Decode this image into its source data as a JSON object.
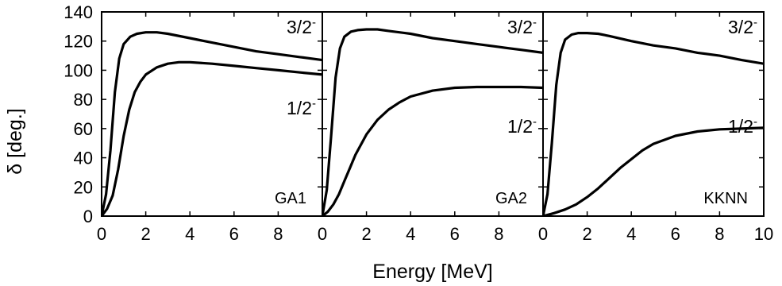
{
  "chart_data": {
    "type": "line",
    "xlabel": "Energy [MeV]",
    "ylabel": "δ [deg.]",
    "xlim": [
      0,
      10
    ],
    "ylim": [
      0,
      140
    ],
    "x_ticks": [
      0,
      2,
      4,
      6,
      8,
      10
    ],
    "y_ticks": [
      0,
      20,
      40,
      60,
      80,
      100,
      120,
      140
    ],
    "grid": false,
    "panels": [
      {
        "tag": "GA1",
        "series": [
          {
            "name": "3/2-",
            "x": [
              0,
              0.2,
              0.4,
              0.6,
              0.8,
              1.0,
              1.3,
              1.6,
              2.0,
              2.5,
              3,
              4,
              5,
              6,
              7,
              8,
              9,
              10
            ],
            "y": [
              0,
              15,
              45,
              85,
              108,
              118,
              123,
              125,
              126,
              126,
              125,
              122,
              119,
              116,
              113,
              111,
              109,
              107
            ]
          },
          {
            "name": "1/2-",
            "x": [
              0,
              0.25,
              0.5,
              0.75,
              1.0,
              1.25,
              1.5,
              1.75,
              2.0,
              2.5,
              3,
              3.5,
              4,
              5,
              6,
              7,
              8,
              9,
              10
            ],
            "y": [
              0,
              5,
              14,
              32,
              55,
              73,
              85,
              92,
              97,
              102,
              104.5,
              105.5,
              105.5,
              104.5,
              103,
              101.5,
              100,
              98.5,
              97
            ]
          }
        ]
      },
      {
        "tag": "GA2",
        "series": [
          {
            "name": "3/2-",
            "x": [
              0,
              0.2,
              0.4,
              0.6,
              0.8,
              1.0,
              1.3,
              1.6,
              2.0,
              2.5,
              3,
              4,
              5,
              6,
              7,
              8,
              9,
              10
            ],
            "y": [
              0,
              18,
              55,
              95,
              115,
              123,
              126.5,
              127.5,
              128,
              128,
              127,
              125,
              122,
              120,
              118,
              116,
              114,
              112
            ]
          },
          {
            "name": "1/2-",
            "x": [
              0,
              0.25,
              0.5,
              0.75,
              1.0,
              1.25,
              1.5,
              2.0,
              2.5,
              3,
              3.5,
              4,
              5,
              6,
              7,
              8,
              9,
              10
            ],
            "y": [
              0,
              3,
              8,
              15,
              24,
              33,
              42,
              56,
              66,
              73,
              78,
              82,
              86,
              88,
              88.5,
              88.5,
              88.5,
              88
            ]
          }
        ]
      },
      {
        "tag": "KKNN",
        "series": [
          {
            "name": "3/2-",
            "x": [
              0,
              0.2,
              0.4,
              0.6,
              0.8,
              1.0,
              1.3,
              1.6,
              2.0,
              2.5,
              3,
              4,
              5,
              6,
              7,
              8,
              9,
              10
            ],
            "y": [
              0,
              15,
              50,
              90,
              112,
              121,
              124.5,
              125.5,
              125.5,
              125,
              123.5,
              120,
              117,
              115,
              112,
              110,
              107,
              104.5
            ]
          },
          {
            "name": "1/2-",
            "x": [
              0,
              0.5,
              1.0,
              1.5,
              2.0,
              2.5,
              3.0,
              3.5,
              4.0,
              4.5,
              5,
              6,
              7,
              8,
              9,
              10
            ],
            "y": [
              0,
              2,
              4.5,
              8,
              13,
              19,
              26,
              33,
              39,
              45,
              49.5,
              55,
              58,
              59.5,
              60,
              60.5
            ]
          }
        ]
      }
    ],
    "labels": {
      "upper": {
        "base": "3/2",
        "sup": "-"
      },
      "lower": {
        "base": "1/2",
        "sup": "-"
      }
    }
  }
}
